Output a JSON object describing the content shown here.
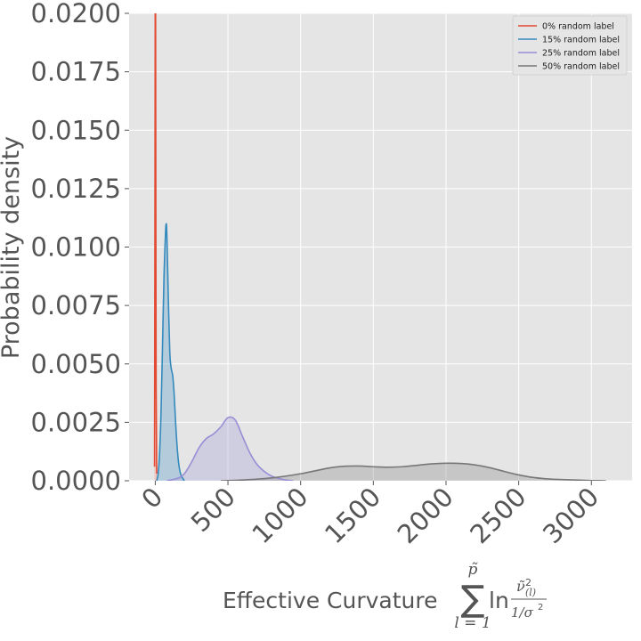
{
  "chart_data": {
    "type": "line",
    "style": "kde-density-filled",
    "xlabel": "Effective Curvature",
    "xlabel_math": {
      "sum_symbol": "∑",
      "upper_limit": "p̃",
      "lower_limit": "l = 1",
      "function": "ln",
      "numerator": "ν̃",
      "numerator_superscript": "2",
      "numerator_subscript": "(l)",
      "denominator": "1/σ",
      "denominator_superscript": "2"
    },
    "ylabel": "Probability density",
    "xlim": [
      -180,
      3280
    ],
    "ylim": [
      0,
      0.02
    ],
    "xticks": [
      {
        "value": 0,
        "label": "0"
      },
      {
        "value": 500,
        "label": "500"
      },
      {
        "value": 1000,
        "label": "1000"
      },
      {
        "value": 1500,
        "label": "1500"
      },
      {
        "value": 2000,
        "label": "2000"
      },
      {
        "value": 2500,
        "label": "2500"
      },
      {
        "value": 3000,
        "label": "3000"
      }
    ],
    "yticks": [
      {
        "value": 0.0,
        "label": "0.0000"
      },
      {
        "value": 0.0025,
        "label": "0.0025"
      },
      {
        "value": 0.005,
        "label": "0.0050"
      },
      {
        "value": 0.0075,
        "label": "0.0075"
      },
      {
        "value": 0.01,
        "label": "0.0100"
      },
      {
        "value": 0.0125,
        "label": "0.0125"
      },
      {
        "value": 0.015,
        "label": "0.0150"
      },
      {
        "value": 0.0175,
        "label": "0.0175"
      },
      {
        "value": 0.02,
        "label": "0.0200"
      }
    ],
    "grid": true,
    "legend_position": "top-right",
    "series": [
      {
        "name": "0% random label",
        "color": "#e24a33",
        "x": [
          -5,
          -2,
          0,
          2,
          4,
          6,
          10
        ],
        "y": [
          0.0006,
          0.012,
          0.0215,
          0.0215,
          0.012,
          0.004,
          0.0003
        ]
      },
      {
        "name": "15% random label",
        "color": "#348abd",
        "x": [
          10,
          20,
          30,
          40,
          50,
          60,
          70,
          75,
          80,
          90,
          100,
          110,
          120,
          130,
          140,
          150,
          160,
          170,
          180,
          190,
          200
        ],
        "y": [
          0.0,
          0.0003,
          0.0012,
          0.003,
          0.0058,
          0.0087,
          0.0105,
          0.011,
          0.0105,
          0.0078,
          0.0055,
          0.0048,
          0.0045,
          0.0037,
          0.0025,
          0.0015,
          0.0008,
          0.0004,
          0.0002,
          0.0001,
          0.0
        ]
      },
      {
        "name": "25% random label",
        "color": "#988ed5",
        "x": [
          80,
          150,
          200,
          250,
          300,
          350,
          400,
          450,
          500,
          550,
          600,
          650,
          700,
          750,
          800,
          850,
          900,
          950
        ],
        "y": [
          0.0,
          0.0001,
          0.0003,
          0.0008,
          0.0014,
          0.0018,
          0.002,
          0.0023,
          0.0027,
          0.0026,
          0.0019,
          0.0012,
          0.0007,
          0.0004,
          0.0002,
          0.0001,
          3e-05,
          0.0
        ]
      },
      {
        "name": "50% random label",
        "color": "#777777",
        "x": [
          450,
          600,
          800,
          1000,
          1200,
          1300,
          1400,
          1500,
          1600,
          1700,
          1800,
          1900,
          2000,
          2100,
          2200,
          2300,
          2400,
          2500,
          2600,
          2700,
          2800,
          2900,
          3000,
          3100
        ],
        "y": [
          0.0,
          3e-05,
          0.00012,
          0.0003,
          0.00055,
          0.00062,
          0.00063,
          0.0006,
          0.00058,
          0.0006,
          0.00066,
          0.00072,
          0.00075,
          0.00074,
          0.00068,
          0.00056,
          0.0004,
          0.00025,
          0.00014,
          8e-05,
          5e-05,
          3e-05,
          1e-05,
          0.0
        ]
      }
    ]
  }
}
